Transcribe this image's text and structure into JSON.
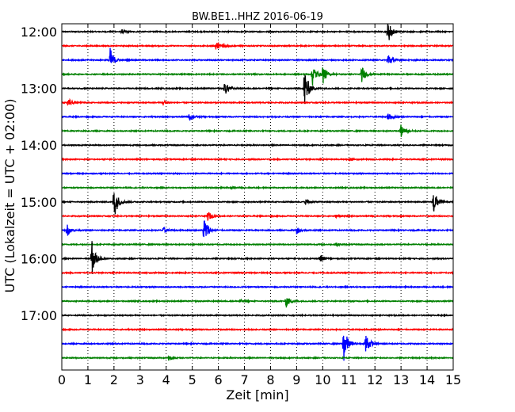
{
  "chart_data": {
    "type": "line",
    "title": "BW.BE1..HHZ 2016-06-19",
    "xlabel": "Zeit  [min]",
    "ylabel": "UTC (Lokalzeit = UTC + 02:00)",
    "xlim": [
      0,
      15
    ],
    "x_ticks": [
      "0",
      "1",
      "2",
      "3",
      "4",
      "5",
      "6",
      "7",
      "8",
      "9",
      "10",
      "11",
      "12",
      "13",
      "14",
      "15"
    ],
    "y_tick_labels": [
      "12:00",
      "13:00",
      "14:00",
      "15:00",
      "16:00",
      "17:00"
    ],
    "y_tick_rows": [
      0,
      4,
      8,
      12,
      16,
      20
    ],
    "grid": "vertical dotted at each minute",
    "trace_interval_min": 15,
    "color_cycle": [
      "#000000",
      "#ff0000",
      "#0000ff",
      "#008000"
    ],
    "traces": [
      {
        "start": "12:00",
        "events": [
          {
            "t": 12.5,
            "amp": 0.9
          },
          {
            "t": 2.3,
            "amp": 0.12
          }
        ]
      },
      {
        "start": "12:15",
        "events": [
          {
            "t": 5.9,
            "amp": 0.35
          },
          {
            "t": 6.2,
            "amp": 0.15
          }
        ]
      },
      {
        "start": "12:30",
        "events": [
          {
            "t": 1.85,
            "amp": 0.9
          },
          {
            "t": 12.5,
            "amp": 0.6
          }
        ]
      },
      {
        "start": "12:45",
        "events": [
          {
            "t": 9.6,
            "amp": 0.9
          },
          {
            "t": 10.0,
            "amp": 0.7
          },
          {
            "t": 11.5,
            "amp": 0.6
          }
        ]
      },
      {
        "start": "13:00",
        "events": [
          {
            "t": 6.25,
            "amp": 0.5
          },
          {
            "t": 9.3,
            "amp": 1.6
          }
        ]
      },
      {
        "start": "13:15",
        "events": [
          {
            "t": 0.25,
            "amp": 0.35
          },
          {
            "t": 3.9,
            "amp": 0.15
          }
        ]
      },
      {
        "start": "13:30",
        "events": [
          {
            "t": 4.9,
            "amp": 0.3
          },
          {
            "t": 12.5,
            "amp": 0.25
          }
        ]
      },
      {
        "start": "13:45",
        "events": [
          {
            "t": 13.0,
            "amp": 0.5
          }
        ]
      },
      {
        "start": "14:00",
        "events": []
      },
      {
        "start": "14:15",
        "events": [
          {
            "t": 11.0,
            "amp": 0.06
          }
        ]
      },
      {
        "start": "14:30",
        "events": []
      },
      {
        "start": "14:45",
        "events": [
          {
            "t": 6.5,
            "amp": 0.08
          }
        ]
      },
      {
        "start": "15:00",
        "events": [
          {
            "t": 2.0,
            "amp": 1.3
          },
          {
            "t": 9.35,
            "amp": 0.2
          },
          {
            "t": 14.25,
            "amp": 0.9
          }
        ]
      },
      {
        "start": "15:15",
        "events": [
          {
            "t": 5.6,
            "amp": 0.35
          },
          {
            "t": 10.5,
            "amp": 0.08
          }
        ]
      },
      {
        "start": "15:30",
        "events": [
          {
            "t": 0.2,
            "amp": 0.45
          },
          {
            "t": 3.9,
            "amp": 0.2
          },
          {
            "t": 5.45,
            "amp": 1.1
          },
          {
            "t": 9.0,
            "amp": 0.25
          }
        ]
      },
      {
        "start": "15:45",
        "events": [
          {
            "t": 10.5,
            "amp": 0.12
          }
        ]
      },
      {
        "start": "16:00",
        "events": [
          {
            "t": 1.15,
            "amp": 1.3
          },
          {
            "t": 9.9,
            "amp": 0.3
          }
        ]
      },
      {
        "start": "16:15",
        "events": []
      },
      {
        "start": "16:30",
        "events": []
      },
      {
        "start": "16:45",
        "events": [
          {
            "t": 6.8,
            "amp": 0.15
          },
          {
            "t": 8.6,
            "amp": 0.45
          }
        ]
      },
      {
        "start": "17:00",
        "events": []
      },
      {
        "start": "17:15",
        "events": []
      },
      {
        "start": "17:30",
        "events": [
          {
            "t": 10.8,
            "amp": 1.4
          },
          {
            "t": 11.65,
            "amp": 0.9
          }
        ]
      },
      {
        "start": "17:45",
        "events": [
          {
            "t": 4.1,
            "amp": 0.2
          }
        ]
      }
    ]
  }
}
